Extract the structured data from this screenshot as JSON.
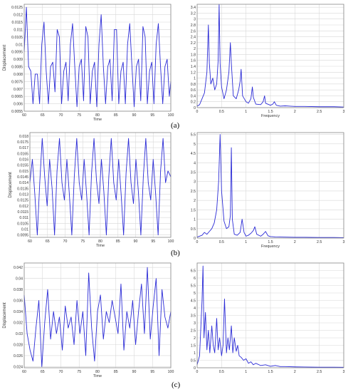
{
  "captions": [
    "(a)",
    "(b)",
    "(c)"
  ],
  "line_color": "#2b2bd6",
  "chart_data": [
    {
      "type": "line",
      "panel": "a-time",
      "xlabel": "Time",
      "ylabel": "Displacement",
      "xlim": [
        60,
        100
      ],
      "ylim": [
        0.0055,
        0.0127
      ],
      "xticks": [
        60,
        65,
        70,
        75,
        80,
        85,
        90,
        95,
        100
      ],
      "yticks": [
        0.0055,
        0.006,
        0.0065,
        0.007,
        0.0075,
        0.008,
        0.0085,
        0.009,
        0.0095,
        0.01,
        0.0105,
        0.011,
        0.0115,
        0.012,
        0.0125
      ],
      "ytick_labels": [
        "0.0055",
        "0.006",
        "0.0065",
        "0.007",
        "0.0075",
        "0.008",
        "0.0085",
        "0.009",
        "0.0095",
        "0.01",
        "0.0105",
        "0.011",
        "0.0115",
        "0.012",
        "0.0125"
      ],
      "grid": true,
      "series": [
        {
          "x": [
            60,
            60.6,
            61.2,
            61.8,
            62.4,
            63,
            63.6,
            64.2,
            64.8,
            65.4,
            66,
            66.6,
            67.2,
            67.8,
            68.4,
            69,
            69.6,
            70.2,
            70.8,
            71.4,
            72,
            72.6,
            73.2,
            73.8,
            74.4,
            75,
            75.6,
            76.2,
            76.8,
            77.4,
            78,
            78.6,
            79.2,
            79.8,
            80.4,
            81,
            81.6,
            82.2,
            82.8,
            83.4,
            84,
            84.6,
            85.2,
            85.8,
            86.4,
            87,
            87.6,
            88.2,
            88.8,
            89.4,
            90,
            90.6,
            91.2,
            91.8,
            92.4,
            93,
            93.6,
            94.2,
            94.8,
            95.4,
            96,
            96.6,
            97.2,
            97.8,
            98.4,
            99,
            99.6,
            100
          ],
          "y": [
            0.0095,
            0.0125,
            0.0085,
            0.0082,
            0.006,
            0.008,
            0.008,
            0.006,
            0.01,
            0.0115,
            0.0082,
            0.006,
            0.0085,
            0.0088,
            0.0068,
            0.011,
            0.0105,
            0.006,
            0.0082,
            0.0088,
            0.0062,
            0.01,
            0.0114,
            0.0085,
            0.0058,
            0.0085,
            0.009,
            0.0062,
            0.0112,
            0.0105,
            0.006,
            0.0082,
            0.0088,
            0.0058,
            0.01,
            0.012,
            0.0085,
            0.006,
            0.0085,
            0.009,
            0.0062,
            0.011,
            0.011,
            0.006,
            0.0082,
            0.0088,
            0.006,
            0.01,
            0.0114,
            0.0085,
            0.0058,
            0.0085,
            0.009,
            0.0062,
            0.0112,
            0.0105,
            0.006,
            0.0082,
            0.0088,
            0.006,
            0.01,
            0.0114,
            0.0085,
            0.006,
            0.0085,
            0.009,
            0.0065,
            0.0075
          ]
        }
      ]
    },
    {
      "type": "line",
      "panel": "a-freq",
      "xlabel": "Frequency",
      "ylabel": "",
      "xlim": [
        0,
        3
      ],
      "ylim": [
        0,
        3.5
      ],
      "xticks": [
        0,
        0.5,
        1,
        1.5,
        2,
        2.5,
        3
      ],
      "xtick_labels": [
        "0",
        "0.5",
        "1",
        "1.5",
        "2",
        "2.5",
        "3"
      ],
      "yticks": [
        0,
        0.2,
        0.4,
        0.6,
        0.8,
        1,
        1.2,
        1.4,
        1.6,
        1.8,
        2,
        2.2,
        2.4,
        2.6,
        2.8,
        3,
        3.2,
        3.4
      ],
      "ytick_labels": [
        "0",
        "0.2",
        "0.4",
        "0.6",
        "0.8",
        "1",
        "1.2",
        "1.4",
        "1.6",
        "1.8",
        "2",
        "2.2",
        "2.4",
        "2.6",
        "2.8",
        "3",
        "3.2",
        "3.4"
      ],
      "grid": true,
      "series": [
        {
          "x": [
            0,
            0.05,
            0.1,
            0.15,
            0.2,
            0.23,
            0.25,
            0.28,
            0.32,
            0.36,
            0.4,
            0.43,
            0.45,
            0.47,
            0.5,
            0.55,
            0.6,
            0.65,
            0.68,
            0.7,
            0.74,
            0.8,
            0.85,
            0.88,
            0.9,
            0.93,
            1.0,
            1.05,
            1.1,
            1.13,
            1.15,
            1.2,
            1.3,
            1.35,
            1.38,
            1.4,
            1.5,
            1.55,
            1.58,
            1.62,
            1.7,
            1.8,
            1.9,
            2.0,
            2.2,
            2.5,
            2.8,
            3.0
          ],
          "y": [
            0.05,
            0.1,
            0.3,
            0.5,
            1.2,
            2.8,
            1.5,
            0.8,
            1.0,
            0.6,
            0.8,
            1.6,
            3.5,
            1.5,
            0.7,
            0.3,
            0.6,
            1.2,
            2.2,
            1.5,
            0.4,
            0.3,
            0.6,
            0.9,
            1.3,
            0.4,
            0.2,
            0.15,
            0.3,
            0.7,
            0.35,
            0.12,
            0.1,
            0.2,
            0.4,
            0.15,
            0.08,
            0.12,
            0.2,
            0.08,
            0.05,
            0.06,
            0.05,
            0.04,
            0.04,
            0.03,
            0.03,
            0.02
          ]
        }
      ]
    },
    {
      "type": "line",
      "panel": "b-time",
      "xlabel": "Time",
      "ylabel": "Displacement",
      "xlim": [
        60,
        100
      ],
      "ylim": [
        0.0093,
        0.0183
      ],
      "xticks": [
        60,
        65,
        70,
        75,
        80,
        85,
        90,
        95,
        100
      ],
      "yticks": [
        0.0095,
        0.01,
        0.0105,
        0.011,
        0.0115,
        0.012,
        0.0125,
        0.013,
        0.0135,
        0.014,
        0.0145,
        0.015,
        0.0155,
        0.016,
        0.0165,
        0.017,
        0.0175,
        0.018
      ],
      "ytick_labels": [
        "0.0095",
        "0.01",
        "0.0105",
        "0.011",
        "0.0115",
        "0.012",
        "0.0125",
        "0.013",
        "0.0135",
        "0.014",
        "0.0145",
        "0.015",
        "0.0155",
        "0.016",
        "0.0165",
        "0.017",
        "0.0175",
        "0.018"
      ],
      "grid": true,
      "series": [
        {
          "x": [
            60,
            60.7,
            61.4,
            62.1,
            62.8,
            63.5,
            64.2,
            64.9,
            65.6,
            66.3,
            67,
            67.7,
            68.4,
            69.1,
            69.8,
            70.5,
            71.2,
            71.9,
            72.6,
            73.3,
            74,
            74.7,
            75.4,
            76.1,
            76.8,
            77.5,
            78.2,
            78.9,
            79.6,
            80.3,
            81,
            81.7,
            82.4,
            83.1,
            83.8,
            84.5,
            85.2,
            85.9,
            86.6,
            87.3,
            88,
            88.7,
            89.4,
            90.1,
            90.8,
            91.5,
            92.2,
            92.9,
            93.6,
            94.3,
            95,
            95.7,
            96.4,
            97.1,
            97.8,
            98.5,
            99.2,
            100
          ],
          "y": [
            0.014,
            0.016,
            0.013,
            0.0095,
            0.014,
            0.0178,
            0.0145,
            0.012,
            0.016,
            0.0135,
            0.0095,
            0.015,
            0.0178,
            0.014,
            0.0125,
            0.016,
            0.013,
            0.0095,
            0.0145,
            0.0178,
            0.014,
            0.0125,
            0.016,
            0.013,
            0.0095,
            0.0148,
            0.0178,
            0.0142,
            0.0122,
            0.016,
            0.0132,
            0.0095,
            0.0145,
            0.0178,
            0.014,
            0.0125,
            0.016,
            0.013,
            0.0095,
            0.0148,
            0.0178,
            0.014,
            0.0122,
            0.016,
            0.0132,
            0.0095,
            0.0145,
            0.0178,
            0.014,
            0.0125,
            0.016,
            0.013,
            0.0095,
            0.015,
            0.0178,
            0.014,
            0.015,
            0.0145
          ]
        }
      ]
    },
    {
      "type": "line",
      "panel": "b-freq",
      "xlabel": "Frequency",
      "ylabel": "",
      "xlim": [
        0,
        3
      ],
      "ylim": [
        0,
        5.6
      ],
      "xticks": [
        0,
        0.5,
        1,
        1.5,
        2,
        2.5,
        3
      ],
      "xtick_labels": [
        "0",
        "0.5",
        "1",
        "1.5",
        "2",
        "2.5",
        "3"
      ],
      "yticks": [
        0,
        0.5,
        1,
        1.5,
        2,
        2.5,
        3,
        3.5,
        4,
        4.5,
        5,
        5.5
      ],
      "ytick_labels": [
        "0",
        "0.5",
        "1",
        "1.5",
        "2",
        "2.5",
        "3",
        "3.5",
        "4",
        "4.5",
        "5",
        "5.5"
      ],
      "grid": true,
      "series": [
        {
          "x": [
            0,
            0.1,
            0.15,
            0.2,
            0.25,
            0.3,
            0.35,
            0.4,
            0.44,
            0.47,
            0.5,
            0.55,
            0.6,
            0.65,
            0.68,
            0.7,
            0.72,
            0.76,
            0.82,
            0.88,
            0.92,
            0.96,
            1.0,
            1.05,
            1.1,
            1.15,
            1.18,
            1.22,
            1.3,
            1.35,
            1.4,
            1.45,
            1.5,
            1.6,
            1.8,
            2.0,
            2.2,
            2.5,
            2.8,
            3.0
          ],
          "y": [
            0.05,
            0.15,
            0.3,
            0.2,
            0.35,
            0.5,
            0.8,
            1.5,
            3.0,
            5.5,
            2.5,
            0.9,
            0.5,
            0.6,
            1.2,
            4.8,
            1.0,
            0.2,
            0.15,
            0.3,
            1.0,
            0.3,
            0.1,
            0.15,
            0.25,
            0.4,
            0.6,
            0.2,
            0.1,
            0.2,
            0.35,
            0.12,
            0.08,
            0.06,
            0.05,
            0.04,
            0.04,
            0.03,
            0.03,
            0.02
          ]
        }
      ]
    },
    {
      "type": "line",
      "panel": "c-time",
      "xlabel": "Time",
      "ylabel": "Displacement",
      "xlim": [
        60,
        100
      ],
      "ylim": [
        0.0238,
        0.0428
      ],
      "xticks": [
        60,
        65,
        70,
        75,
        80,
        85,
        90,
        95,
        100
      ],
      "yticks": [
        0.024,
        0.026,
        0.028,
        0.03,
        0.032,
        0.034,
        0.036,
        0.038,
        0.04,
        0.042
      ],
      "ytick_labels": [
        "0.024",
        "0.026",
        "0.028",
        "0.03",
        "0.032",
        "0.034",
        "0.036",
        "0.038",
        "0.04",
        "0.042"
      ],
      "grid": true,
      "series": [
        {
          "x": [
            60,
            60.8,
            61.6,
            62.4,
            63.2,
            64,
            64.8,
            65.6,
            66.4,
            67.2,
            68,
            68.8,
            69.6,
            70.4,
            71.2,
            72,
            72.8,
            73.6,
            74.4,
            75.2,
            76,
            76.8,
            77.6,
            78.4,
            79.2,
            80,
            80.8,
            81.6,
            82.4,
            83.2,
            84,
            84.8,
            85.6,
            86.4,
            87.2,
            88,
            88.8,
            89.6,
            90.4,
            91.2,
            92,
            92.8,
            93.6,
            94.4,
            95.2,
            96,
            96.8,
            97.6,
            98.4,
            99.2,
            100
          ],
          "y": [
            0.037,
            0.03,
            0.027,
            0.025,
            0.031,
            0.036,
            0.024,
            0.032,
            0.038,
            0.029,
            0.034,
            0.03,
            0.033,
            0.027,
            0.035,
            0.031,
            0.033,
            0.028,
            0.036,
            0.03,
            0.034,
            0.026,
            0.041,
            0.031,
            0.025,
            0.034,
            0.037,
            0.029,
            0.034,
            0.032,
            0.036,
            0.033,
            0.03,
            0.039,
            0.027,
            0.034,
            0.031,
            0.036,
            0.028,
            0.034,
            0.039,
            0.03,
            0.042,
            0.029,
            0.035,
            0.04,
            0.026,
            0.038,
            0.033,
            0.031,
            0.034
          ]
        }
      ]
    },
    {
      "type": "line",
      "panel": "c-freq",
      "xlabel": "",
      "ylabel": "",
      "xlim": [
        0,
        3
      ],
      "ylim": [
        0,
        7
      ],
      "xticks": [
        0,
        0.5,
        1,
        1.5,
        2,
        2.5,
        3
      ],
      "xtick_labels": [
        "0",
        "0.5",
        "1",
        "1.5",
        "2",
        "2.5",
        "3"
      ],
      "yticks": [
        0,
        0.5,
        1,
        1.5,
        2,
        2.5,
        3,
        3.5,
        4,
        4.5,
        5,
        5.5,
        6,
        6.5
      ],
      "ytick_labels": [
        "0",
        "0.5",
        "1",
        "1.5",
        "2",
        "2.5",
        "3",
        "3.5",
        "4",
        "4.5",
        "5",
        "5.5",
        "6",
        "6.5"
      ],
      "grid": true,
      "series": [
        {
          "x": [
            0,
            0.05,
            0.1,
            0.12,
            0.14,
            0.17,
            0.2,
            0.23,
            0.26,
            0.3,
            0.33,
            0.36,
            0.4,
            0.43,
            0.46,
            0.5,
            0.53,
            0.56,
            0.6,
            0.63,
            0.66,
            0.7,
            0.73,
            0.76,
            0.8,
            0.83,
            0.86,
            0.9,
            0.95,
            1.0,
            1.05,
            1.1,
            1.15,
            1.2,
            1.3,
            1.4,
            1.5,
            1.6,
            1.7,
            1.8,
            2.0,
            2.2,
            2.5,
            2.8,
            3.0
          ],
          "y": [
            0.2,
            0.8,
            4.5,
            6.8,
            2.0,
            3.7,
            1.2,
            2.5,
            1.0,
            2.8,
            1.5,
            1.0,
            3.3,
            1.2,
            2.0,
            0.8,
            1.5,
            4.6,
            1.0,
            2.0,
            1.2,
            2.8,
            1.0,
            2.0,
            1.1,
            1.5,
            0.8,
            0.7,
            0.5,
            0.6,
            0.3,
            0.4,
            0.2,
            0.3,
            0.15,
            0.2,
            0.1,
            0.15,
            0.08,
            0.08,
            0.06,
            0.05,
            0.04,
            0.04,
            0.03
          ]
        }
      ]
    }
  ]
}
